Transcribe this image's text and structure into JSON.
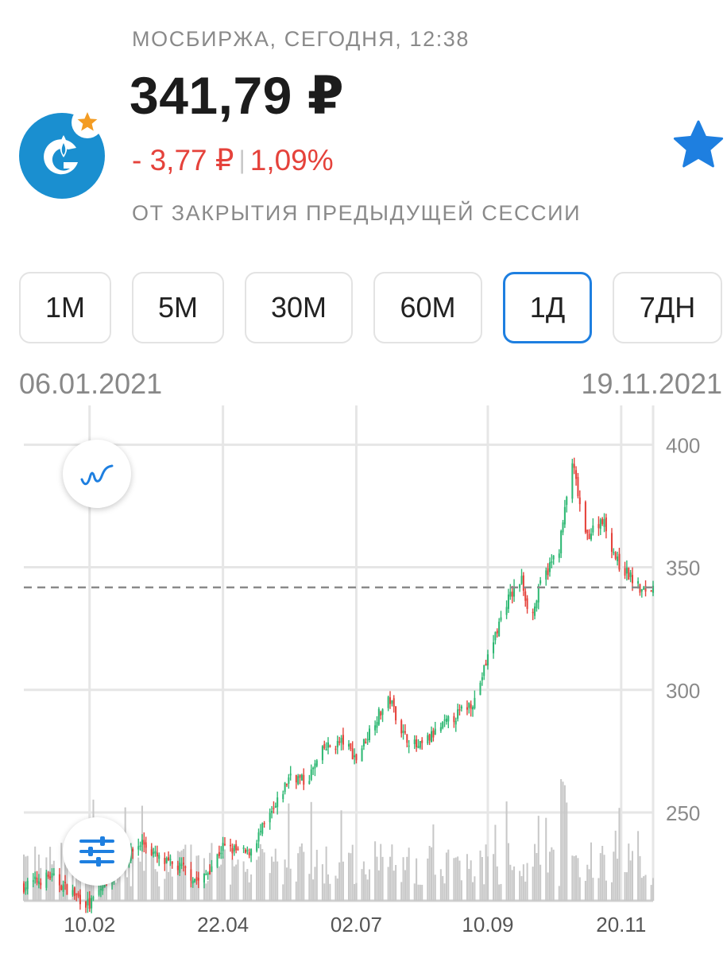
{
  "header": {
    "exchange_time": "МОСБИРЖА, СЕГОДНЯ, 12:38",
    "price": "341,79 ₽",
    "change_abs": "- 3,77 ₽",
    "change_sep": "|",
    "change_pct": "1,09%",
    "session_label": "ОТ ЗАКРЫТИЯ ПРЕДЫДУЩЕЙ СЕССИИ",
    "logo_icon": "gazprom-logo",
    "logo_color": "#1a8fd0",
    "badge_icon": "star-icon",
    "badge_color": "#f39c23",
    "favorite_icon": "star-icon",
    "favorite_color": "#1e7fe0",
    "negative_color": "#e5423b"
  },
  "timeframes": [
    {
      "label": "1М"
    },
    {
      "label": "5М"
    },
    {
      "label": "30М"
    },
    {
      "label": "60М"
    },
    {
      "label": "1Д",
      "active": true
    },
    {
      "label": "7ДН"
    }
  ],
  "range": {
    "from": "06.01.2021",
    "to": "19.11.2021"
  },
  "controls": {
    "chart_type_icon": "line-chart-icon",
    "settings_icon": "sliders-icon"
  },
  "chart_data": {
    "type": "candlestick",
    "y_ticks": [
      "400",
      "350",
      "300",
      "250"
    ],
    "x_ticks": [
      "10.02",
      "22.04",
      "02.07",
      "10.09",
      "20.11"
    ],
    "ylim": [
      214,
      416
    ],
    "current_price": 341.79,
    "grid": true,
    "up_color": "#2eb873",
    "down_color": "#e5423b",
    "anchors": [
      [
        "01-06",
        220
      ],
      [
        "01-20",
        224
      ],
      [
        "02-03",
        216
      ],
      [
        "02-10",
        212
      ],
      [
        "02-24",
        228
      ],
      [
        "03-10",
        238
      ],
      [
        "03-20",
        230
      ],
      [
        "04-01",
        227
      ],
      [
        "04-10",
        221
      ],
      [
        "04-22",
        236
      ],
      [
        "05-05",
        233
      ],
      [
        "05-20",
        252
      ],
      [
        "05-28",
        266
      ],
      [
        "06-05",
        262
      ],
      [
        "06-15",
        276
      ],
      [
        "06-25",
        279
      ],
      [
        "07-02",
        272
      ],
      [
        "07-12",
        288
      ],
      [
        "07-20",
        296
      ],
      [
        "07-27",
        282
      ],
      [
        "08-04",
        276
      ],
      [
        "08-15",
        284
      ],
      [
        "08-25",
        290
      ],
      [
        "09-03",
        296
      ],
      [
        "09-12",
        318
      ],
      [
        "09-20",
        336
      ],
      [
        "09-28",
        345
      ],
      [
        "10-03",
        328
      ],
      [
        "10-08",
        343
      ],
      [
        "10-18",
        358
      ],
      [
        "10-25",
        393
      ],
      [
        "11-01",
        362
      ],
      [
        "11-10",
        370
      ],
      [
        "11-18",
        352
      ],
      [
        "11-25",
        346
      ],
      [
        "12-01",
        340
      ],
      [
        "12-07",
        342
      ]
    ]
  }
}
